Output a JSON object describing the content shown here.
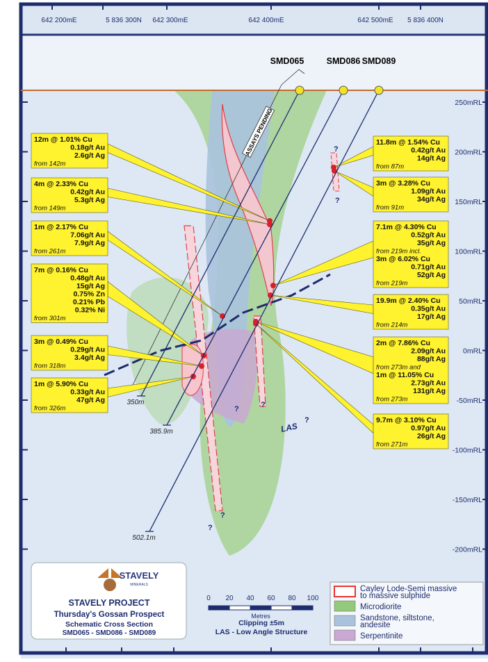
{
  "grid_labels": [
    "642 200mE",
    "5 836 300N",
    "642 300mE",
    "642 400mE",
    "642 500mE",
    "5 836 400N"
  ],
  "rl_labels": [
    "250mRL",
    "200mRL",
    "150mRL",
    "100mRL",
    "50mRL",
    "0mRL",
    "-50mRL",
    "-100mRL",
    "-150mRL",
    "-200mRL"
  ],
  "holes": [
    {
      "name": "SMD065",
      "depth": "350m"
    },
    {
      "name": "SMD086",
      "depth": "385.9m"
    },
    {
      "name": "SMD089",
      "depth": "502.1m"
    }
  ],
  "assays_pending": "ASSAYS PENDING",
  "las_label": "LAS",
  "question_mark": "?",
  "left_intercepts": [
    {
      "lines": [
        "12m @ 1.01% Cu",
        "0.18g/t Au",
        "2.6g/t Ag",
        "from 142m"
      ]
    },
    {
      "lines": [
        "4m @ 2.33% Cu",
        "0.42g/t Au",
        "5.3g/t Ag",
        "from 149m"
      ]
    },
    {
      "lines": [
        "1m @ 2.17% Cu",
        "7.06g/t Au",
        "7.9g/t Ag",
        "from 261m"
      ]
    },
    {
      "lines": [
        "7m @ 0.16% Cu",
        "0.48g/t Au",
        "15g/t Ag",
        "0.75% Zn",
        "0.21% Pb",
        "0.32% Ni",
        "from 301m"
      ]
    },
    {
      "lines": [
        "3m @ 0.49% Cu",
        "0.29g/t Au",
        "3.4g/t Ag",
        "from 318m"
      ]
    },
    {
      "lines": [
        "1m @ 5.90% Cu",
        "0.33g/t Au",
        "47g/t Ag",
        "from 326m"
      ]
    }
  ],
  "right_intercepts": [
    {
      "lines": [
        "11.8m @ 1.54% Cu",
        "0.42g/t Au",
        "14g/t Ag",
        "from 87m"
      ]
    },
    {
      "lines": [
        "3m @ 3.28% Cu",
        "1.09g/t Au",
        "34g/t Ag",
        "from 91m"
      ]
    },
    {
      "lines": [
        "7.1m @ 4.30% Cu",
        "0.52g/t Au",
        "35g/t Ag",
        "from 219m incl.",
        "3m @ 6.02% Cu",
        "0.71g/t Au",
        "52g/t Ag",
        "from 219m"
      ]
    },
    {
      "lines": [
        "19.9m @ 2.40% Cu",
        "0.35g/t Au",
        "17g/t Ag",
        "from 214m"
      ]
    },
    {
      "lines": [
        "2m @ 7.86% Cu",
        "2.09g/t Au",
        "88g/t Ag",
        "from 273m and",
        "1m @ 11.05% Cu",
        "2.73g/t Au",
        "131g/t Ag",
        "from 273m"
      ]
    },
    {
      "lines": [
        "9.7m @ 3.10% Cu",
        "0.97g/t Au",
        "26g/t Ag",
        "from 271m"
      ]
    }
  ],
  "title_box": {
    "logo": "STAVELY",
    "logo_sub": "MINERALS",
    "project": "STAVELY PROJECT",
    "prospect": "Thursday's Gossan Prospect",
    "section": "Schematic Cross Section",
    "holes": "SMD065 - SMD086 - SMD089"
  },
  "scale": {
    "ticks": [
      "0",
      "20",
      "40",
      "60",
      "80",
      "100"
    ],
    "unit": "Metres",
    "clipping": "Clipping ±5m",
    "las_note": "LAS - Low Angle Structure"
  },
  "legend": [
    {
      "label": "Cayley Lode-Semi massive to massive sulphide",
      "color": "#e8342c"
    },
    {
      "label": "Microdiorite",
      "color": "#93c97a"
    },
    {
      "label": "Sandstone, siltstone, andesite",
      "color": "#a9c3dd"
    },
    {
      "label": "Serpentinite",
      "color": "#c9a8d1"
    }
  ]
}
